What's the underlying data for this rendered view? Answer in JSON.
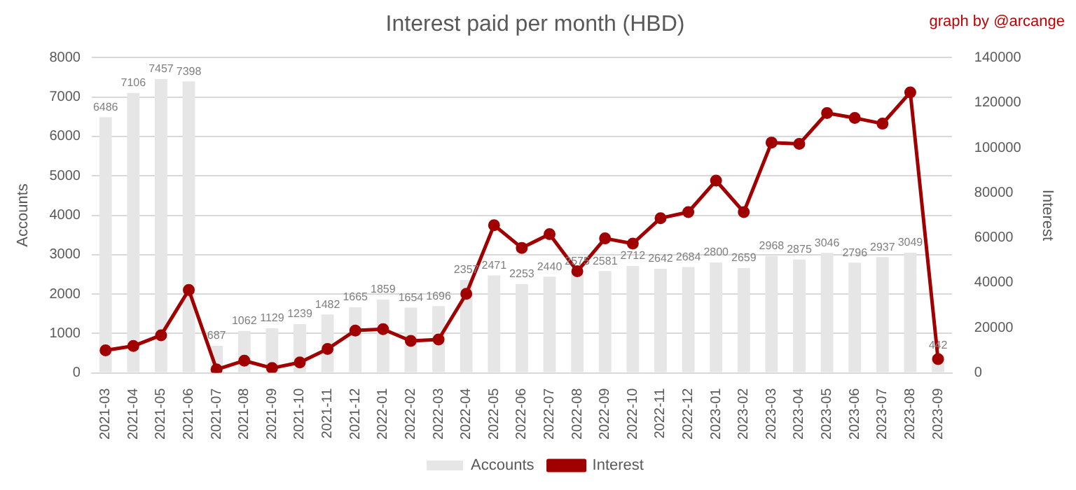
{
  "chart_data": {
    "type": "bar",
    "title": "Interest paid per month (HBD)",
    "ylabel": "Accounts",
    "y2label": "Interest",
    "annotations": [
      "graph by @arcange"
    ],
    "categories": [
      "2021-03",
      "2021-04",
      "2021-05",
      "2021-06",
      "2021-07",
      "2021-08",
      "2021-09",
      "2021-10",
      "2021-11",
      "2021-12",
      "2022-01",
      "2022-02",
      "2022-03",
      "2022-04",
      "2022-05",
      "2022-06",
      "2022-07",
      "2022-08",
      "2022-09",
      "2022-10",
      "2022-11",
      "2022-12",
      "2023-01",
      "2023-02",
      "2023-03",
      "2023-04",
      "2023-05",
      "2023-06",
      "2023-07",
      "2023-08",
      "2023-09"
    ],
    "series": [
      {
        "name": "Accounts",
        "color": "#e6e6e6",
        "values": [
          6486,
          7106,
          7457,
          7398,
          687,
          1062,
          1129,
          1239,
          1482,
          1665,
          1859,
          1654,
          1696,
          2357,
          2471,
          2253,
          2440,
          2575,
          2581,
          2712,
          2642,
          2684,
          2800,
          2659,
          2968,
          2875,
          3046,
          2796,
          2937,
          3049,
          442
        ],
        "value_labels": [
          "6486",
          "7106",
          "7457",
          "7398",
          "687",
          "1062",
          "1129",
          "1239",
          "1482",
          "1665",
          "1859",
          "1654",
          "1696",
          "2357",
          "2471",
          "2253",
          "2440",
          "2575",
          "2581",
          "2712",
          "2642",
          "2684",
          "2800",
          "2659",
          "2968",
          "2875",
          "3046",
          "2796",
          "2937",
          "3049",
          "442"
        ]
      },
      {
        "name": "Interest",
        "type": "line",
        "axis": "y2",
        "color": "#a00000",
        "marker": "circle",
        "values": [
          10000,
          11900,
          16700,
          36800,
          1500,
          5400,
          2100,
          4600,
          10600,
          18800,
          19400,
          14200,
          14800,
          35100,
          65600,
          55500,
          61600,
          45100,
          59700,
          57400,
          68700,
          71400,
          85400,
          71400,
          102300,
          101700,
          115400,
          113200,
          110700,
          124600,
          6100
        ]
      }
    ],
    "ylim": [
      0,
      8000
    ],
    "yticks": [
      0,
      1000,
      2000,
      3000,
      4000,
      5000,
      6000,
      7000,
      8000
    ],
    "y2lim": [
      0,
      140000
    ],
    "y2ticks": [
      0,
      20000,
      40000,
      60000,
      80000,
      100000,
      120000,
      140000
    ],
    "grid": "y",
    "legend": "bottom"
  }
}
